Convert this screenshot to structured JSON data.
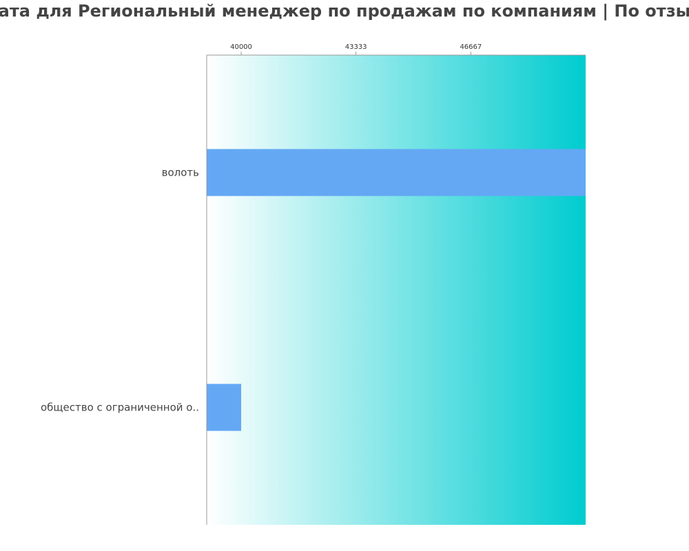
{
  "chart_data": {
    "type": "bar",
    "orientation": "horizontal",
    "title": "ата для Региональный менеджер по продажам по компаниям  | По отзы",
    "xlabel": "",
    "ylabel": "",
    "x_ticks": [
      40000,
      43333,
      46667
    ],
    "tick_labels": [
      "40000",
      "43333",
      "46667"
    ],
    "xlim": [
      39000,
      50000
    ],
    "categories": [
      "волоть",
      "общество с ограниченной о.."
    ],
    "values": [
      50000,
      40000
    ],
    "grid": false,
    "legend": "none",
    "colors": {
      "bar": "#64a8f4",
      "gradient_start": "#ffffff",
      "gradient_end": "#00cccf",
      "axis": "#999999",
      "title": "#444444"
    }
  }
}
